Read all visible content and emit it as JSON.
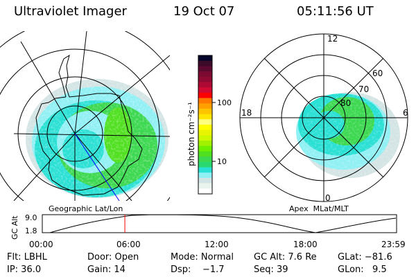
{
  "header": {
    "instrument": "Ultraviolet Imager",
    "date": "19 Oct 07",
    "time": "05:11:56 UT"
  },
  "colorbar": {
    "label": "photon cm⁻²s⁻¹",
    "ticks": [
      "100",
      "10"
    ],
    "colors": [
      "#06062c",
      "#3a0a28",
      "#5a0a2e",
      "#7a0a30",
      "#8e0a32",
      "#ae0a34",
      "#d00a32",
      "#ff0000",
      "#ff7800",
      "#ffa000",
      "#ffc400",
      "#ffe400",
      "#ffff80",
      "#ffff00",
      "#e8f400",
      "#ccf800",
      "#a0f000",
      "#6cf000",
      "#50e020",
      "#3cd850",
      "#2ad870",
      "#2ae0d4",
      "#90f0f4",
      "#d4e4e4",
      "#eaf4ee",
      "#ffffff"
    ]
  },
  "left_map": {
    "label": "Geographic Lat/Lon"
  },
  "right_map": {
    "label": "Apex  MLat/MLT",
    "mlt_labels": [
      "12",
      "18",
      "6",
      "0"
    ],
    "lat_labels": [
      "60",
      "70",
      "80"
    ]
  },
  "orbit_plot": {
    "ylabel": "GC Alt",
    "yticks": [
      "9.0",
      "1.8"
    ],
    "xticks": [
      "00:00",
      "06:00",
      "12:00",
      "18:00",
      "23:59"
    ],
    "current_time_fraction": 0.2166,
    "marker_color": "#ff0000"
  },
  "info": {
    "row1": [
      "Flt: LBHL",
      "Door: Open",
      "Mode: Normal",
      "GC Alt: 7.6 Re",
      "GLat: −81.6"
    ],
    "row2": [
      "IP: 36.0",
      "Gain: 14",
      "Dsp:    −1.7",
      "Seq: 39",
      "GLon:   9.5"
    ]
  }
}
